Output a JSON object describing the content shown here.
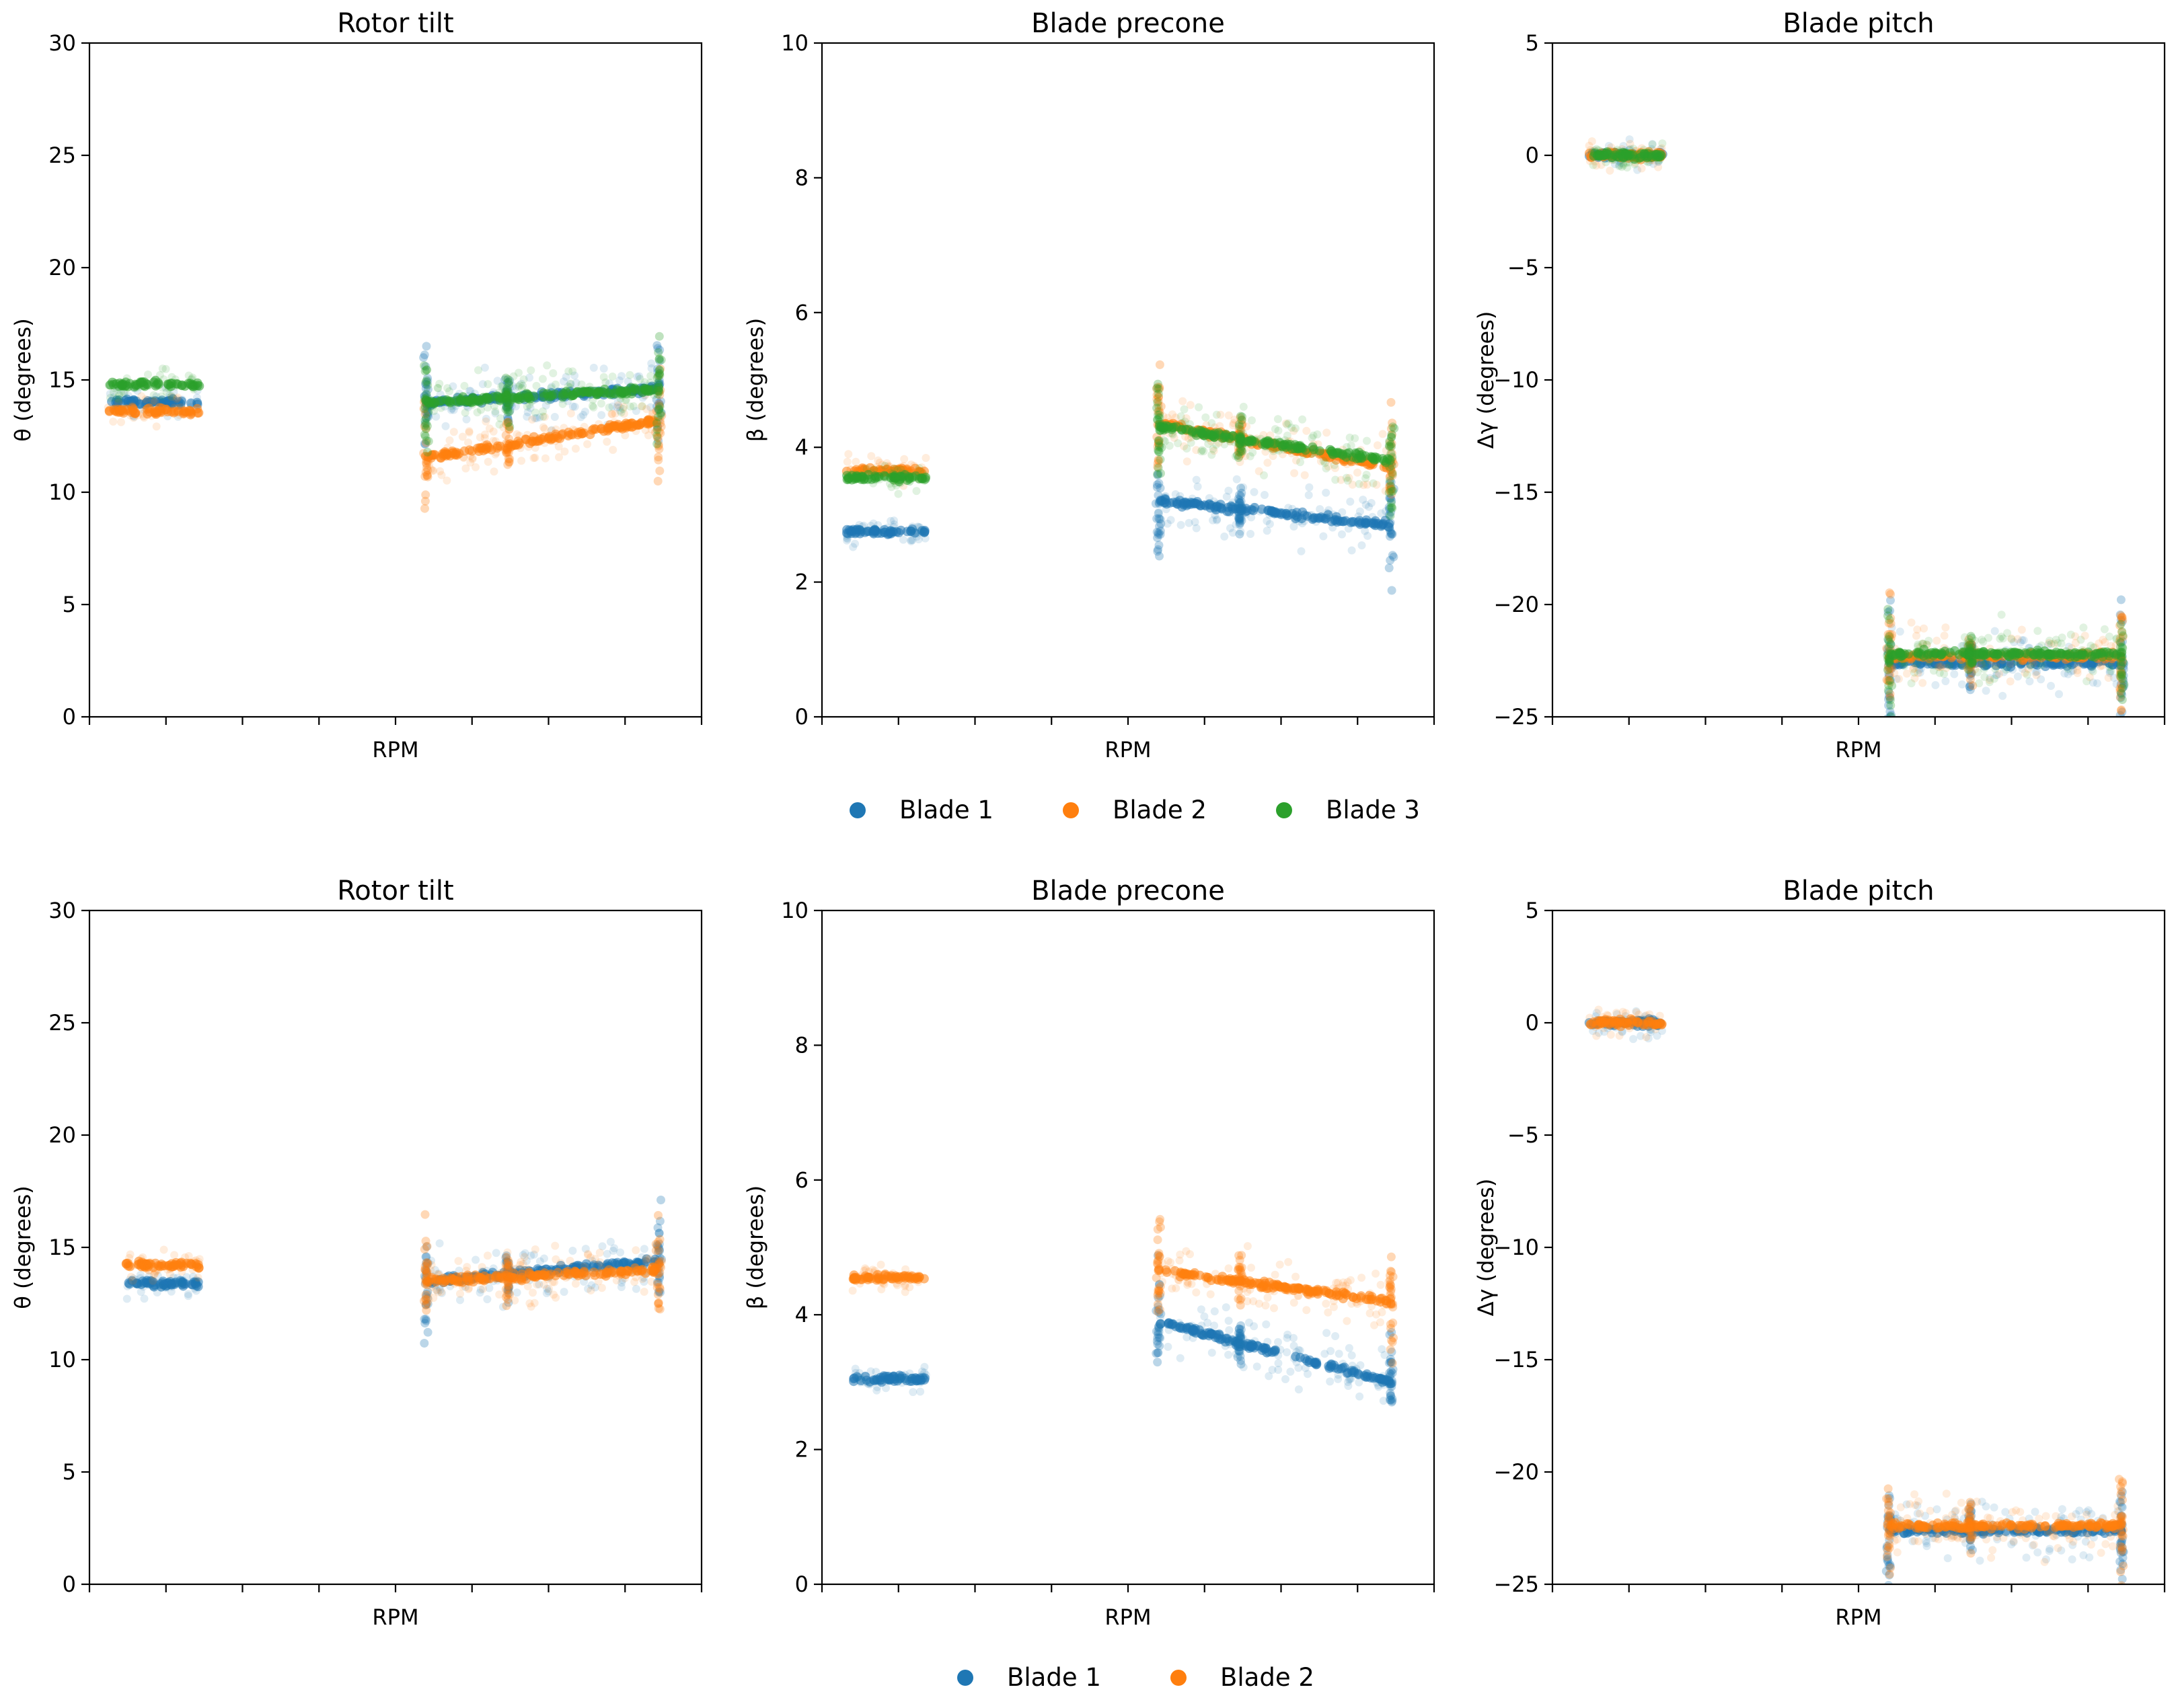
{
  "colors": {
    "blade1": "#1f77b4",
    "blade2": "#ff7f0e",
    "blade3": "#2ca02c"
  },
  "rows": [
    {
      "legend": [
        "Blade 1",
        "Blade 2",
        "Blade 3"
      ],
      "panels": [
        "tilt",
        "precone",
        "pitch"
      ]
    },
    {
      "legend": [
        "Blade 1",
        "Blade 2"
      ],
      "panels": [
        "tilt",
        "precone",
        "pitch"
      ]
    }
  ],
  "chart_data": [
    {
      "type": "scatter",
      "row": 0,
      "title": "Rotor tilt",
      "xlabel": "RPM",
      "ylabel": "θ (degrees)",
      "ylim": [
        0,
        30
      ],
      "yticks": [
        "0",
        "5",
        "10",
        "15",
        "20",
        "25",
        "30"
      ],
      "xlim": [
        0,
        100
      ],
      "series": [
        {
          "name": "Blade 1",
          "clusters": [
            {
              "x": [
                3,
                18
              ],
              "y": 14.0
            },
            {
              "x": [
                55,
                93
              ],
              "y": [
                14.0,
                14.6
              ]
            }
          ]
        },
        {
          "name": "Blade 2",
          "clusters": [
            {
              "x": [
                3,
                18
              ],
              "y": 13.6
            },
            {
              "x": [
                55,
                93
              ],
              "y": [
                11.5,
                13.2
              ]
            }
          ]
        },
        {
          "name": "Blade 3",
          "clusters": [
            {
              "x": [
                3,
                18
              ],
              "y": 14.8
            },
            {
              "x": [
                55,
                93
              ],
              "y": [
                14.0,
                14.6
              ]
            }
          ]
        }
      ]
    },
    {
      "type": "scatter",
      "row": 0,
      "title": "Blade precone",
      "xlabel": "RPM",
      "ylabel": "β (degrees)",
      "ylim": [
        0,
        10
      ],
      "yticks": [
        "0",
        "2",
        "4",
        "6",
        "8",
        "10"
      ],
      "xlim": [
        0,
        100
      ],
      "series": [
        {
          "name": "Blade 1",
          "clusters": [
            {
              "x": [
                4,
                17
              ],
              "y": 2.75
            },
            {
              "x": [
                55,
                93
              ],
              "y": [
                3.2,
                2.85
              ]
            }
          ]
        },
        {
          "name": "Blade 2",
          "clusters": [
            {
              "x": [
                4,
                17
              ],
              "y": 3.65
            },
            {
              "x": [
                55,
                93
              ],
              "y": [
                4.35,
                3.7
              ]
            }
          ]
        },
        {
          "name": "Blade 3",
          "clusters": [
            {
              "x": [
                4,
                17
              ],
              "y": 3.55
            },
            {
              "x": [
                55,
                93
              ],
              "y": [
                4.3,
                3.8
              ]
            }
          ]
        }
      ]
    },
    {
      "type": "scatter",
      "row": 0,
      "title": "Blade pitch",
      "xlabel": "RPM",
      "ylabel": "Δγ (degrees)",
      "ylim": [
        -25,
        5
      ],
      "yticks": [
        "−25",
        "−20",
        "−15",
        "−10",
        "−5",
        "0",
        "5"
      ],
      "xlim": [
        0,
        100
      ],
      "series": [
        {
          "name": "Blade 1",
          "clusters": [
            {
              "x": [
                6,
                18
              ],
              "y": 0.0
            },
            {
              "x": [
                55,
                93
              ],
              "y": -22.6
            }
          ]
        },
        {
          "name": "Blade 2",
          "clusters": [
            {
              "x": [
                6,
                18
              ],
              "y": 0.0
            },
            {
              "x": [
                55,
                93
              ],
              "y": -22.3
            }
          ]
        },
        {
          "name": "Blade 3",
          "clusters": [
            {
              "x": [
                6,
                18
              ],
              "y": 0.0
            },
            {
              "x": [
                55,
                93
              ],
              "y": -22.2
            }
          ]
        }
      ]
    },
    {
      "type": "scatter",
      "row": 1,
      "title": "Rotor tilt",
      "xlabel": "RPM",
      "ylabel": "θ (degrees)",
      "ylim": [
        0,
        30
      ],
      "yticks": [
        "0",
        "5",
        "10",
        "15",
        "20",
        "25",
        "30"
      ],
      "xlim": [
        0,
        100
      ],
      "series": [
        {
          "name": "Blade 1",
          "clusters": [
            {
              "x": [
                6,
                18
              ],
              "y": 13.4
            },
            {
              "x": [
                55,
                93
              ],
              "y": [
                13.5,
                14.4
              ]
            }
          ]
        },
        {
          "name": "Blade 2",
          "clusters": [
            {
              "x": [
                6,
                18
              ],
              "y": 14.2
            },
            {
              "x": [
                55,
                93
              ],
              "y": [
                13.5,
                14.0
              ]
            }
          ]
        }
      ]
    },
    {
      "type": "scatter",
      "row": 1,
      "title": "Blade precone",
      "xlabel": "RPM",
      "ylabel": "β (degrees)",
      "ylim": [
        0,
        10
      ],
      "yticks": [
        "0",
        "2",
        "4",
        "6",
        "8",
        "10"
      ],
      "xlim": [
        0,
        100
      ],
      "series": [
        {
          "name": "Blade 1",
          "clusters": [
            {
              "x": [
                5,
                17
              ],
              "y": 3.05
            },
            {
              "x": [
                55,
                93
              ],
              "y": [
                3.9,
                3.0
              ]
            }
          ]
        },
        {
          "name": "Blade 2",
          "clusters": [
            {
              "x": [
                5,
                17
              ],
              "y": 4.55
            },
            {
              "x": [
                55,
                93
              ],
              "y": [
                4.65,
                4.2
              ]
            }
          ]
        }
      ]
    },
    {
      "type": "scatter",
      "row": 1,
      "title": "Blade pitch",
      "xlabel": "RPM",
      "ylabel": "Δγ (degrees)",
      "ylim": [
        -25,
        5
      ],
      "yticks": [
        "−25",
        "−20",
        "−15",
        "−10",
        "−5",
        "0",
        "5"
      ],
      "xlim": [
        0,
        100
      ],
      "series": [
        {
          "name": "Blade 1",
          "clusters": [
            {
              "x": [
                6,
                18
              ],
              "y": 0.0
            },
            {
              "x": [
                55,
                93
              ],
              "y": -22.6
            }
          ]
        },
        {
          "name": "Blade 2",
          "clusters": [
            {
              "x": [
                6,
                18
              ],
              "y": 0.0
            },
            {
              "x": [
                55,
                93
              ],
              "y": -22.4
            }
          ]
        }
      ]
    }
  ]
}
